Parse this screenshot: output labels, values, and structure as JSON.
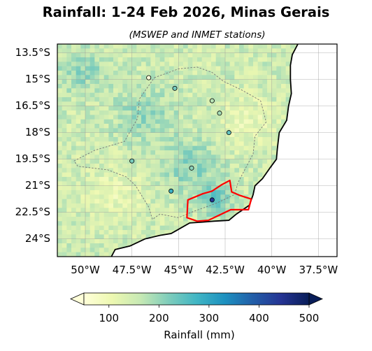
{
  "title": "Rainfall: 1-24 Feb 2026, Minas Gerais",
  "subtitle": "(MSWEP and INMET stations)",
  "map": {
    "lon_range": [
      -51.5,
      -36.5
    ],
    "lat_range": [
      -25.0,
      -13.0
    ],
    "y_ticks": [
      {
        "lat": -13.5,
        "label": "13.5°S"
      },
      {
        "lat": -15.0,
        "label": "15°S"
      },
      {
        "lat": -16.5,
        "label": "16.5°S"
      },
      {
        "lat": -18.0,
        "label": "18°S"
      },
      {
        "lat": -19.5,
        "label": "19.5°S"
      },
      {
        "lat": -21.0,
        "label": "21°S"
      },
      {
        "lat": -22.5,
        "label": "22.5°S"
      },
      {
        "lat": -24.0,
        "label": "24°S"
      }
    ],
    "x_ticks": [
      {
        "lon": -50.0,
        "label": "50°W"
      },
      {
        "lon": -47.5,
        "label": "47.5°W"
      },
      {
        "lon": -45.0,
        "label": "45°W"
      },
      {
        "lon": -42.5,
        "label": "42.5°W"
      },
      {
        "lon": -40.0,
        "label": "40°W"
      },
      {
        "lon": -37.5,
        "label": "37.5°W"
      }
    ],
    "grid": true,
    "ocean_color": "#ffffff",
    "coastline_color": "#000000",
    "state_border_style": "dashed gray",
    "region_outline_color": "#ff0000",
    "stations": [
      {
        "lon": -46.6,
        "lat": -14.9,
        "rainfall_mm": 20
      },
      {
        "lon": -45.2,
        "lat": -15.5,
        "rainfall_mm": 230
      },
      {
        "lon": -43.2,
        "lat": -16.2,
        "rainfall_mm": 175
      },
      {
        "lon": -42.8,
        "lat": -16.9,
        "rainfall_mm": 190
      },
      {
        "lon": -42.3,
        "lat": -18.0,
        "rainfall_mm": 245
      },
      {
        "lon": -47.5,
        "lat": -19.6,
        "rainfall_mm": 225
      },
      {
        "lon": -44.3,
        "lat": -20.0,
        "rainfall_mm": 210
      },
      {
        "lon": -45.4,
        "lat": -21.3,
        "rainfall_mm": 285
      },
      {
        "lon": -43.2,
        "lat": -21.8,
        "rainfall_mm": 440
      }
    ]
  },
  "colorbar": {
    "label": "Rainfall (mm)",
    "min": 50,
    "max": 500,
    "extend": "both",
    "ticks": [
      {
        "value": 100,
        "label": "100"
      },
      {
        "value": 200,
        "label": "200"
      },
      {
        "value": 300,
        "label": "300"
      },
      {
        "value": 400,
        "label": "400"
      },
      {
        "value": 500,
        "label": "500"
      }
    ],
    "colormap": [
      "#ffffd9",
      "#edf8b1",
      "#c7e9b4",
      "#7fcdbb",
      "#41b6c4",
      "#1d91c0",
      "#225ea8",
      "#253494",
      "#081d58"
    ]
  }
}
